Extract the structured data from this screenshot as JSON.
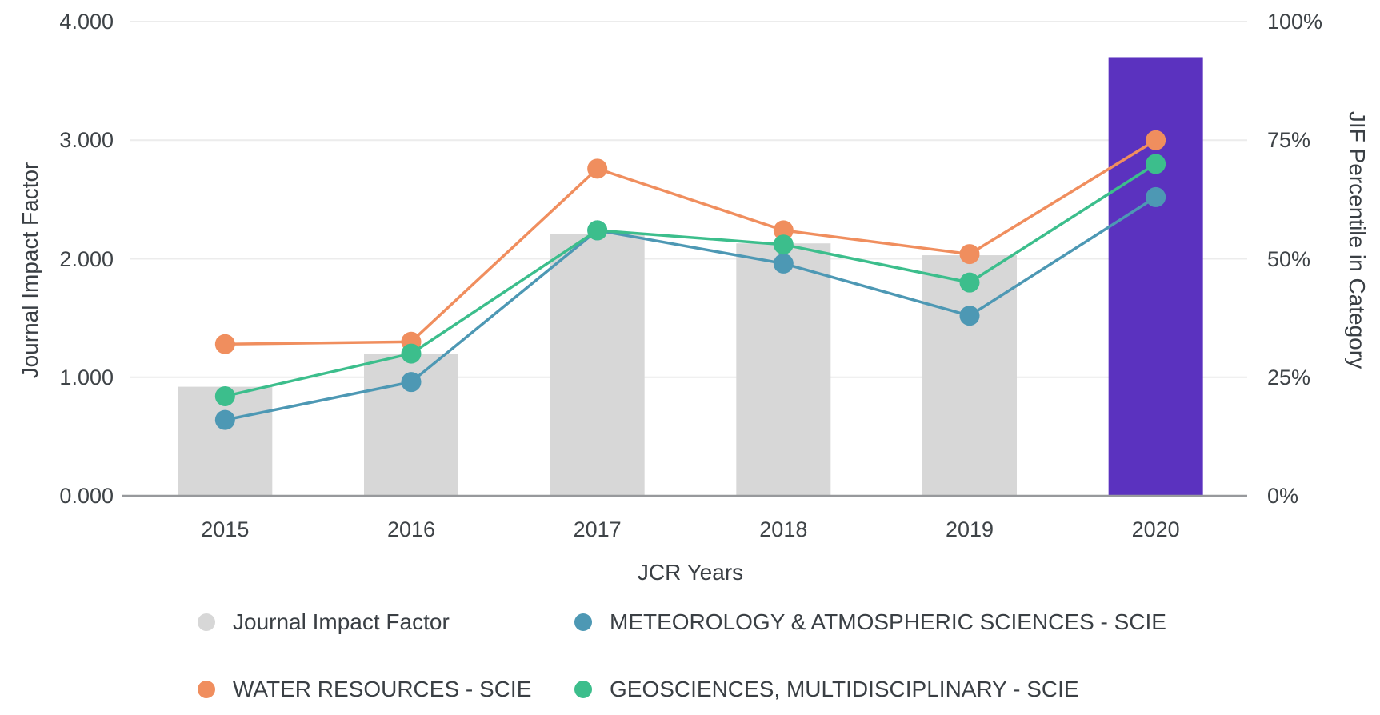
{
  "chart_data": {
    "type": "combo-bar-line",
    "title": "",
    "grid": true,
    "legend_position": "bottom",
    "x": {
      "label": "JCR Years",
      "categories": [
        "2015",
        "2016",
        "2017",
        "2018",
        "2019",
        "2020"
      ]
    },
    "y_left": {
      "label": "Journal Impact Factor",
      "min": 0,
      "max": 4,
      "tick_values": [
        4,
        3,
        2,
        1,
        0
      ],
      "tick_labels": [
        "4.000",
        "3.000",
        "2.000",
        "1.000",
        "0.000"
      ]
    },
    "y_right": {
      "label": "JIF Percentile in Category",
      "min": 0,
      "max": 100,
      "tick_values": [
        100,
        75,
        50,
        25,
        0
      ],
      "tick_labels": [
        "100%",
        "75%",
        "50%",
        "25%",
        "0%"
      ]
    },
    "bars": {
      "name": "Journal Impact Factor",
      "axis": "left",
      "values": [
        0.92,
        1.2,
        2.21,
        2.13,
        2.03,
        3.7
      ],
      "default_color": "#D7D7D7",
      "highlight_color": "#5B32BF",
      "highlight_index": 5
    },
    "series": [
      {
        "name": "METEOROLOGY & ATMOSPHERIC SCIENCES - SCIE",
        "axis": "right",
        "color": "#4D98B4",
        "values": [
          16,
          24,
          56,
          49,
          38,
          63
        ]
      },
      {
        "name": "WATER RESOURCES - SCIE",
        "axis": "right",
        "color": "#F08E5E",
        "values": [
          32,
          32.5,
          69,
          56,
          51,
          75
        ]
      },
      {
        "name": "GEOSCIENCES, MULTIDISCIPLINARY - SCIE",
        "axis": "right",
        "color": "#3CBE8C",
        "values": [
          21,
          30,
          56,
          53,
          45,
          70
        ]
      }
    ],
    "colors": {
      "gridline": "#ECECEC",
      "axis_line": "#97999C",
      "text": "#3E4347"
    }
  }
}
